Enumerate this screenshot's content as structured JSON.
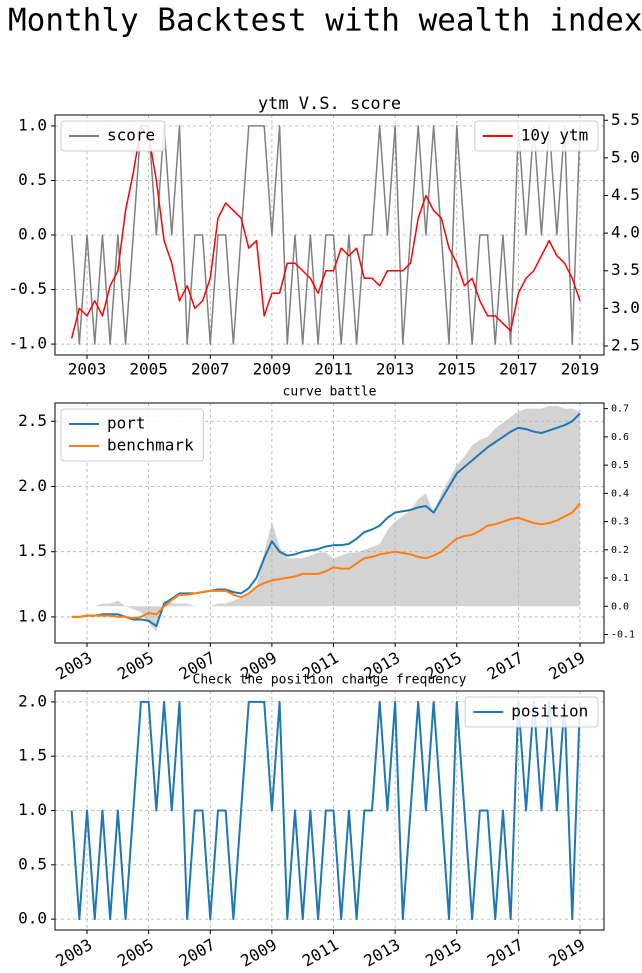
{
  "title": "Monthly Backtest with wealth index",
  "chart_data": [
    {
      "type": "line",
      "title": "ytm V.S. score",
      "x": [
        2002.5,
        2002.75,
        2003,
        2003.25,
        2003.5,
        2003.75,
        2004,
        2004.25,
        2004.5,
        2004.75,
        2005,
        2005.25,
        2005.5,
        2005.75,
        2006,
        2006.25,
        2006.5,
        2006.75,
        2007,
        2007.25,
        2007.5,
        2007.75,
        2008,
        2008.25,
        2008.5,
        2008.75,
        2009,
        2009.25,
        2009.5,
        2009.75,
        2010,
        2010.25,
        2010.5,
        2010.75,
        2011,
        2011.25,
        2011.5,
        2011.75,
        2012,
        2012.25,
        2012.5,
        2012.75,
        2013,
        2013.25,
        2013.5,
        2013.75,
        2014,
        2014.25,
        2014.5,
        2014.75,
        2015,
        2015.25,
        2015.5,
        2015.75,
        2016,
        2016.25,
        2016.5,
        2016.75,
        2017,
        2017.25,
        2017.5,
        2017.75,
        2018,
        2018.25,
        2018.5,
        2018.75,
        2019
      ],
      "series": [
        {
          "name": "score",
          "color": "#808080",
          "values": [
            0,
            -1,
            0,
            -1,
            0,
            -1,
            0,
            -1,
            0,
            1,
            1,
            0,
            1,
            0,
            1,
            -1,
            0,
            0,
            -1,
            0,
            0,
            -1,
            0,
            1,
            1,
            1,
            0,
            1,
            -1,
            0,
            -1,
            0,
            -1,
            0,
            0,
            -1,
            0,
            -1,
            0,
            0,
            1,
            0,
            1,
            -1,
            0,
            1,
            0,
            1,
            0,
            -1,
            1,
            0,
            -1,
            0,
            0,
            -1,
            0,
            -1,
            1,
            0,
            1,
            0,
            1,
            0,
            1,
            -1,
            1
          ]
        },
        {
          "name": "10y ytm",
          "color": "#ff0000",
          "axis": "y2",
          "values": [
            2.6,
            3.0,
            2.9,
            3.1,
            2.9,
            3.3,
            3.5,
            4.3,
            4.8,
            5.4,
            5.3,
            4.7,
            3.9,
            3.6,
            3.1,
            3.3,
            3.0,
            3.1,
            3.4,
            4.2,
            4.4,
            4.3,
            4.2,
            3.8,
            3.9,
            2.9,
            3.2,
            3.2,
            3.6,
            3.6,
            3.5,
            3.4,
            3.2,
            3.5,
            3.5,
            3.8,
            3.7,
            3.8,
            3.4,
            3.4,
            3.3,
            3.5,
            3.5,
            3.5,
            3.6,
            4.2,
            4.5,
            4.3,
            4.2,
            3.8,
            3.6,
            3.3,
            3.4,
            3.1,
            2.9,
            2.9,
            2.8,
            2.7,
            3.2,
            3.4,
            3.5,
            3.7,
            3.9,
            3.7,
            3.6,
            3.4,
            3.1
          ]
        }
      ],
      "xlim": [
        2001.96,
        2019.78
      ],
      "xticks": [
        2003,
        2005,
        2007,
        2009,
        2011,
        2013,
        2015,
        2017,
        2019
      ],
      "ylim": [
        -1.1,
        1.1
      ],
      "yticks": [
        {
          "value": -1,
          "label": "-1.0"
        },
        -0.5,
        {
          "value": 0,
          "label": "0.0"
        },
        0.5,
        {
          "value": 1,
          "label": "1.0"
        }
      ],
      "y2lim": [
        2.38,
        5.57
      ],
      "y2ticks": [
        2.5,
        {
          "value": 3,
          "label": "3.0"
        },
        3.5,
        {
          "value": 4,
          "label": "4.0"
        },
        4.5,
        {
          "value": 5,
          "label": "5.0"
        },
        5.5
      ],
      "grid": true,
      "legend": "upper left",
      "legend2": "upper right",
      "xtick_rotation": 0
    },
    {
      "type": "line",
      "title": "curve battle",
      "x": [
        2002.5,
        2002.75,
        2003,
        2003.25,
        2003.5,
        2003.75,
        2004,
        2004.25,
        2004.5,
        2004.75,
        2005,
        2005.25,
        2005.5,
        2005.75,
        2006,
        2006.25,
        2006.5,
        2006.75,
        2007,
        2007.25,
        2007.5,
        2007.75,
        2008,
        2008.25,
        2008.5,
        2008.75,
        2009,
        2009.25,
        2009.5,
        2009.75,
        2010,
        2010.25,
        2010.5,
        2010.75,
        2011,
        2011.25,
        2011.5,
        2011.75,
        2012,
        2012.25,
        2012.5,
        2012.75,
        2013,
        2013.25,
        2013.5,
        2013.75,
        2014,
        2014.25,
        2014.5,
        2014.75,
        2015,
        2015.25,
        2015.5,
        2015.75,
        2016,
        2016.25,
        2016.5,
        2016.75,
        2017,
        2017.25,
        2017.5,
        2017.75,
        2018,
        2018.25,
        2018.5,
        2018.75,
        2019
      ],
      "series": [
        {
          "color": "#d3d3d3",
          "axis": "y2",
          "kind": "area",
          "values": [
            0,
            0,
            0,
            0,
            0.01,
            0.01,
            0.02,
            0,
            -0.01,
            -0.02,
            -0.06,
            -0.09,
            0.02,
            0.01,
            0.01,
            0.01,
            0,
            0,
            0,
            0.01,
            0.01,
            0.02,
            0.03,
            0.04,
            0.07,
            0.19,
            0.3,
            0.21,
            0.17,
            0.17,
            0.17,
            0.18,
            0.19,
            0.19,
            0.17,
            0.18,
            0.19,
            0.19,
            0.2,
            0.21,
            0.22,
            0.27,
            0.3,
            0.32,
            0.34,
            0.38,
            0.4,
            0.33,
            0.4,
            0.45,
            0.5,
            0.53,
            0.57,
            0.59,
            0.6,
            0.63,
            0.65,
            0.67,
            0.69,
            0.7,
            0.7,
            0.7,
            0.71,
            0.71,
            0.7,
            0.7,
            0.69
          ]
        },
        {
          "name": "port",
          "color": "#1f77b4",
          "values": [
            1,
            1,
            1.01,
            1.01,
            1.02,
            1.02,
            1.02,
            1,
            0.98,
            0.98,
            0.97,
            0.93,
            1.1,
            1.14,
            1.18,
            1.18,
            1.18,
            1.19,
            1.2,
            1.21,
            1.21,
            1.19,
            1.18,
            1.22,
            1.3,
            1.45,
            1.58,
            1.5,
            1.47,
            1.48,
            1.5,
            1.51,
            1.52,
            1.54,
            1.55,
            1.55,
            1.56,
            1.6,
            1.65,
            1.67,
            1.7,
            1.76,
            1.8,
            1.81,
            1.82,
            1.84,
            1.85,
            1.8,
            1.9,
            2,
            2.1,
            2.15,
            2.2,
            2.25,
            2.3,
            2.34,
            2.38,
            2.42,
            2.45,
            2.44,
            2.42,
            2.41,
            2.43,
            2.45,
            2.47,
            2.5,
            2.56
          ]
        },
        {
          "name": "benchmark",
          "color": "#ff7f0e",
          "values": [
            1,
            1,
            1.01,
            1.01,
            1.01,
            1.01,
            1,
            1,
            0.99,
            1,
            1.03,
            1.02,
            1.08,
            1.13,
            1.17,
            1.17,
            1.18,
            1.19,
            1.2,
            1.2,
            1.2,
            1.17,
            1.15,
            1.18,
            1.23,
            1.26,
            1.28,
            1.29,
            1.3,
            1.31,
            1.33,
            1.33,
            1.33,
            1.35,
            1.38,
            1.37,
            1.37,
            1.41,
            1.45,
            1.46,
            1.48,
            1.49,
            1.5,
            1.49,
            1.48,
            1.46,
            1.45,
            1.47,
            1.5,
            1.55,
            1.6,
            1.62,
            1.63,
            1.66,
            1.7,
            1.71,
            1.73,
            1.75,
            1.76,
            1.74,
            1.72,
            1.71,
            1.72,
            1.74,
            1.77,
            1.8,
            1.87
          ]
        }
      ],
      "xlim": [
        2001.96,
        2019.78
      ],
      "xticks": [
        2003,
        2005,
        2007,
        2009,
        2011,
        2013,
        2015,
        2017,
        2019
      ],
      "ylim": [
        0.8,
        2.64
      ],
      "yticks": [
        {
          "value": 1,
          "label": "1.0"
        },
        1.5,
        {
          "value": 2,
          "label": "2.0"
        },
        2.5
      ],
      "y2lim": [
        -0.13,
        0.72
      ],
      "y2ticks": [
        -0.1,
        {
          "value": 0,
          "label": "0.0"
        },
        0.1,
        0.2,
        0.3,
        0.4,
        0.5,
        0.6,
        0.7
      ],
      "grid": true,
      "legend": "upper left",
      "xtick_rotation": 30
    },
    {
      "type": "line",
      "title": "Check the position change frequency",
      "x": [
        2002.5,
        2002.75,
        2003,
        2003.25,
        2003.5,
        2003.75,
        2004,
        2004.25,
        2004.5,
        2004.75,
        2005,
        2005.25,
        2005.5,
        2005.75,
        2006,
        2006.25,
        2006.5,
        2006.75,
        2007,
        2007.25,
        2007.5,
        2007.75,
        2008,
        2008.25,
        2008.5,
        2008.75,
        2009,
        2009.25,
        2009.5,
        2009.75,
        2010,
        2010.25,
        2010.5,
        2010.75,
        2011,
        2011.25,
        2011.5,
        2011.75,
        2012,
        2012.25,
        2012.5,
        2012.75,
        2013,
        2013.25,
        2013.5,
        2013.75,
        2014,
        2014.25,
        2014.5,
        2014.75,
        2015,
        2015.25,
        2015.5,
        2015.75,
        2016,
        2016.25,
        2016.5,
        2016.75,
        2017,
        2017.25,
        2017.5,
        2017.75,
        2018,
        2018.25,
        2018.5,
        2018.75,
        2019
      ],
      "series": [
        {
          "name": "position",
          "color": "#1f77b4",
          "values": [
            1,
            0,
            1,
            0,
            1,
            0,
            1,
            0,
            1,
            2,
            2,
            1,
            2,
            1,
            2,
            0,
            1,
            1,
            0,
            1,
            1,
            0,
            1,
            2,
            2,
            2,
            1,
            2,
            0,
            1,
            0,
            1,
            0,
            1,
            1,
            0,
            1,
            0,
            1,
            1,
            2,
            1,
            2,
            0,
            1,
            2,
            1,
            2,
            1,
            0,
            2,
            1,
            0,
            1,
            1,
            0,
            1,
            0,
            2,
            1,
            2,
            1,
            2,
            1,
            2,
            0,
            2
          ]
        }
      ],
      "xlim": [
        2001.96,
        2019.78
      ],
      "xticks": [
        2003,
        2005,
        2007,
        2009,
        2011,
        2013,
        2015,
        2017,
        2019
      ],
      "ylim": [
        -0.1,
        2.1
      ],
      "yticks": [
        {
          "value": 0,
          "label": "0.0"
        },
        0.5,
        {
          "value": 1,
          "label": "1.0"
        },
        1.5,
        {
          "value": 2,
          "label": "2.0"
        }
      ],
      "grid": true,
      "legend": "upper right",
      "xtick_rotation": 30
    }
  ]
}
